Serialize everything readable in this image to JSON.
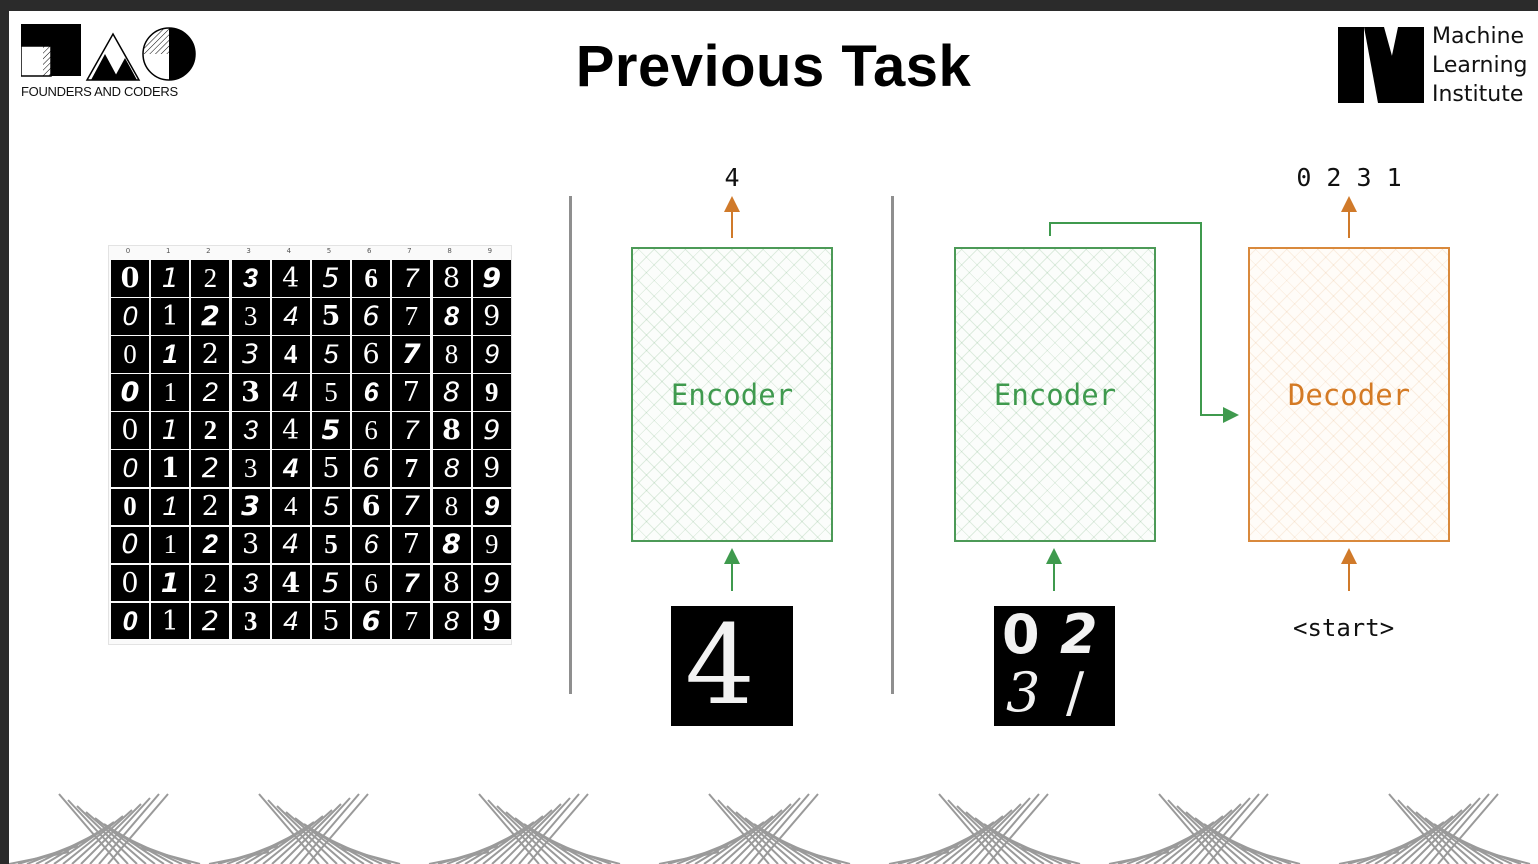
{
  "header": {
    "title": "Previous Task",
    "left_logo_caption": "FOUNDERS AND CODERS",
    "right_logo_lines": [
      "Machine",
      "Learning",
      "Institute"
    ]
  },
  "mnist_sample": {
    "column_labels": [
      "0",
      "1",
      "2",
      "3",
      "4",
      "5",
      "6",
      "7",
      "8",
      "9"
    ],
    "rows": 10,
    "digits": [
      "0",
      "1",
      "2",
      "3",
      "4",
      "5",
      "6",
      "7",
      "8",
      "9"
    ]
  },
  "panel_single": {
    "encoder_label": "Encoder",
    "output_label": "4",
    "input_image_digits": [
      "4"
    ]
  },
  "panel_sequence": {
    "encoder_label": "Encoder",
    "decoder_label": "Decoder",
    "output_label": "0 2 3 1",
    "decoder_input_label": "<start>",
    "input_image_digits": [
      "0",
      "2",
      "3",
      "/"
    ]
  },
  "colors": {
    "encoder": "#4c9a57",
    "decoder": "#d9893c",
    "divider": "#8f8f8f",
    "arrow_orange": "#d07a2a",
    "arrow_green": "#3f9a4e"
  }
}
